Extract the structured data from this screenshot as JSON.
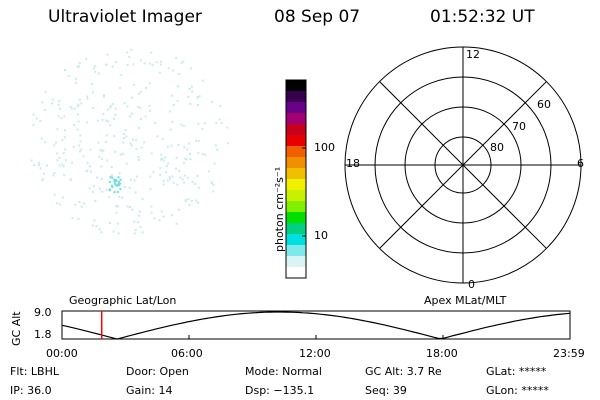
{
  "header": {
    "instrument": "Ultraviolet Imager",
    "date": "08 Sep 07",
    "time": "01:52:32 UT"
  },
  "colorbar": {
    "label": "photon cm⁻²s⁻¹",
    "ticks": [
      "100",
      "10"
    ],
    "colors": [
      "#000000",
      "#3a0050",
      "#6a0088",
      "#a00070",
      "#c80020",
      "#e80000",
      "#f06000",
      "#f09000",
      "#f0c000",
      "#f0f000",
      "#c8f000",
      "#80f000",
      "#00e000",
      "#00d080",
      "#00e0e0",
      "#80e8e8",
      "#d8f4f4",
      "#ffffff"
    ]
  },
  "polar": {
    "mlt_labels": [
      "12",
      "18",
      "6",
      "0"
    ],
    "lat_labels": [
      "60",
      "70",
      "80"
    ]
  },
  "altitude_panel": {
    "ylabel": "GC Alt",
    "yticks": [
      "9.0",
      "1.8"
    ],
    "left_caption": "Geographic Lat/Lon",
    "right_caption": "Apex MLat/MLT",
    "time_labels": [
      "00:00",
      "06:00",
      "12:00",
      "18:00",
      "23:59"
    ],
    "marker_time": "01:52:32",
    "marker_color": "#ff0000"
  },
  "info": {
    "flt": "Flt: LBHL",
    "ip": "IP: 36.0",
    "door": "Door: Open",
    "gain": "Gain: 14",
    "mode": "Mode: Normal",
    "dsp": "Dsp: −135.1",
    "gc_alt": "GC Alt: 3.7 Re",
    "seq": "Seq: 39",
    "glat": "GLat: *****",
    "glon": "GLon: *****"
  },
  "colors": {
    "dots": "#c8ecee",
    "dots_bright": "#70dede",
    "fg": "#000000"
  }
}
